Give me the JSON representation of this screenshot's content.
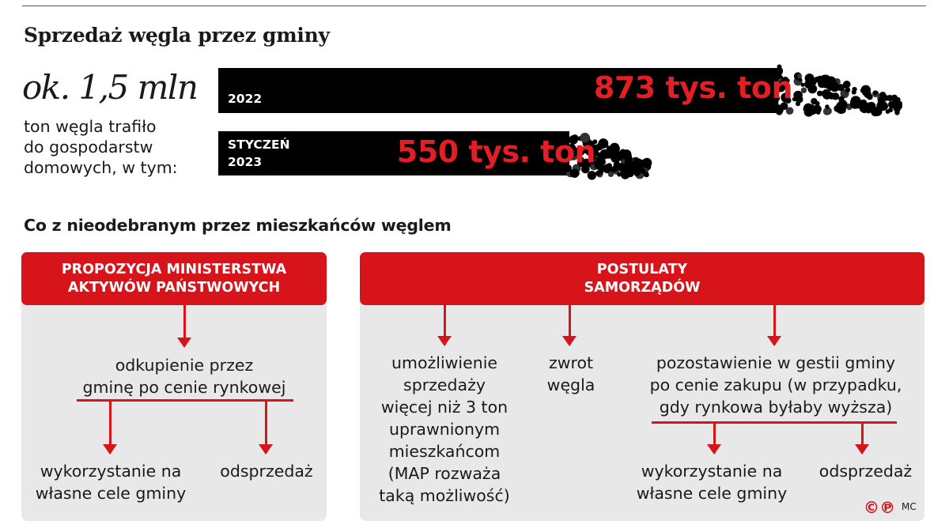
{
  "title": "Sprzedaż węgla przez gminy",
  "total": {
    "value": "ok. 1,5 mln",
    "desc_lines": [
      "ton węgla trafiło",
      "do gospodarstw",
      "domowych, w tym:"
    ]
  },
  "chart_data": {
    "type": "bar",
    "orientation": "horizontal",
    "title": "Sprzedaż węgla przez gminy",
    "unit": "tys. ton",
    "categories": [
      "2022",
      "STYCZEŃ 2023"
    ],
    "category_lines": [
      [
        "2022"
      ],
      [
        "STYCZEŃ",
        "2023"
      ]
    ],
    "values": [
      873,
      550
    ],
    "value_labels": [
      "873 tys. ton",
      "550 tys. ton"
    ],
    "bar_color": "#000000",
    "value_label_color": "#e31e24"
  },
  "subtitle": "Co z nieodebranym przez mieszkańców węglem",
  "left_panel": {
    "header_lines": [
      "PROPOZYCJA MINISTERSTWA",
      "AKTYWÓW PAŃSTWOWYCH"
    ],
    "main_lines": [
      "odkupienie przez",
      "gminę po cenie rynkowej"
    ],
    "option_a_lines": [
      "wykorzystanie na",
      "własne cele gminy"
    ],
    "option_b": "odsprzedaż"
  },
  "right_panel": {
    "header_lines": [
      "POSTULATY",
      "SAMORZĄDÓW"
    ],
    "col1_lines": [
      "umożliwienie",
      "sprzedaży",
      "więcej niż 3 ton",
      "uprawnionym",
      "mieszkańcom",
      "(MAP rozważa",
      "taką możliwość)"
    ],
    "col2_lines": [
      "zwrot",
      "węgla"
    ],
    "col3_lines": [
      "pozostawienie w gestii gminy",
      "po cenie zakupu (w przypadku,",
      "gdy rynkowa byłaby wyższa)"
    ],
    "option_a_lines": [
      "wykorzystanie na",
      "własne cele gminy"
    ],
    "option_b": "odsprzedaż"
  },
  "footer": {
    "copyright": "©℗",
    "author": "MC"
  },
  "colors": {
    "accent": "#d8141b",
    "panel": "#e8e8e8"
  }
}
